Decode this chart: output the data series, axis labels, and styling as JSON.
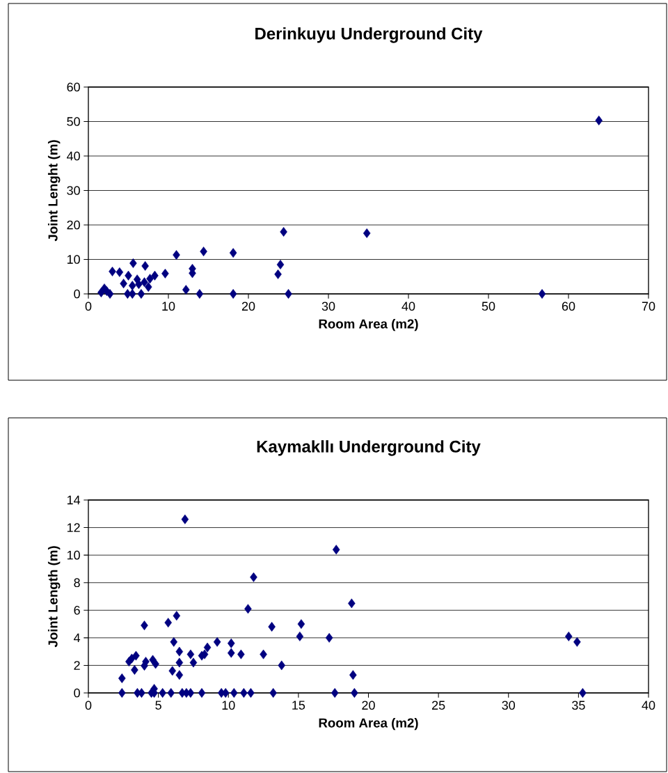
{
  "chart_data": [
    {
      "type": "scatter",
      "title": "Derinkuyu Underground City",
      "xlabel": "Room Area (m2)",
      "ylabel": "Joint Lenght (m)",
      "xlim": [
        0,
        70
      ],
      "ylim": [
        0,
        60
      ],
      "xticks": [
        0,
        10,
        20,
        30,
        40,
        50,
        60,
        70
      ],
      "yticks": [
        0,
        10,
        20,
        30,
        40,
        50,
        60
      ],
      "grid": "y",
      "marker": "diamond",
      "series": [
        {
          "color": "#000080",
          "x": [
            1.6,
            2,
            2.3,
            2.7,
            3,
            3.9,
            4.4,
            4.9,
            5.5,
            5,
            5.6,
            5.5,
            6.1,
            6.3,
            6.6,
            7,
            7.1,
            7.5,
            7.7,
            8.3,
            9.6,
            11,
            12.2,
            13,
            13,
            13.9,
            14.4,
            18.1,
            18.1,
            24,
            23.7,
            24.4,
            25,
            34.8,
            56.7,
            63.8
          ],
          "values": [
            0.4,
            1.6,
            0.8,
            0,
            6.5,
            6.3,
            3,
            0,
            0,
            5.3,
            8.9,
            2.4,
            4.2,
            2.8,
            0,
            3.4,
            8.1,
            2,
            4.4,
            5.3,
            5.9,
            11.3,
            1.2,
            7.3,
            6,
            0,
            12.3,
            11.9,
            0,
            8.5,
            5.7,
            18,
            0,
            17.6,
            0,
            50.3
          ]
        }
      ]
    },
    {
      "type": "scatter",
      "title": "Kaymakllı Underground City",
      "xlabel": "Room Area (m2)",
      "ylabel": "Joint Length (m)",
      "xlim": [
        0,
        40
      ],
      "ylim": [
        0,
        14
      ],
      "xticks": [
        0,
        5,
        10,
        15,
        20,
        25,
        30,
        35,
        40
      ],
      "yticks": [
        0,
        2,
        4,
        6,
        8,
        10,
        12,
        14
      ],
      "grid": "y",
      "marker": "diamond",
      "series": [
        {
          "color": "#000080",
          "x": [
            6.9,
            11.8,
            11.4,
            13.1,
            4.0,
            5.7,
            6.3,
            2.4,
            2.9,
            3.1,
            3.4,
            3.3,
            4.0,
            4.1,
            4.6,
            4.8,
            6.1,
            6.5,
            6.5,
            6.0,
            6.5,
            7.3,
            7.5,
            8.1,
            8.3,
            8.5,
            9.2,
            10.2,
            10.2,
            10.9,
            12.5,
            13.8,
            2.4,
            3.5,
            3.8,
            4.5,
            4.7,
            4.7,
            5.3,
            5.9,
            6.7,
            7.0,
            7.3,
            8.1,
            9.5,
            9.8,
            10.4,
            11.1,
            11.6,
            13.2,
            17.7,
            18.8,
            15.2,
            15.1,
            17.2,
            18.9,
            17.6,
            19.0,
            34.3,
            34.9,
            35.3
          ],
          "values": [
            12.6,
            8.4,
            6.1,
            4.8,
            4.9,
            5.1,
            5.6,
            1.06,
            2.27,
            2.5,
            2.7,
            1.67,
            1.97,
            2.27,
            2.4,
            2.1,
            3.7,
            3.0,
            2.2,
            1.6,
            1.3,
            2.8,
            2.2,
            2.7,
            2.8,
            3.3,
            3.7,
            3.6,
            2.9,
            2.8,
            2.8,
            2.0,
            0,
            0,
            0,
            0,
            0,
            0.3,
            0,
            0,
            0,
            0,
            0,
            0,
            0,
            0,
            0,
            0,
            0,
            0,
            10.4,
            6.5,
            5.0,
            4.1,
            4.0,
            1.3,
            0,
            0,
            4.1,
            3.7,
            0
          ]
        }
      ]
    }
  ]
}
